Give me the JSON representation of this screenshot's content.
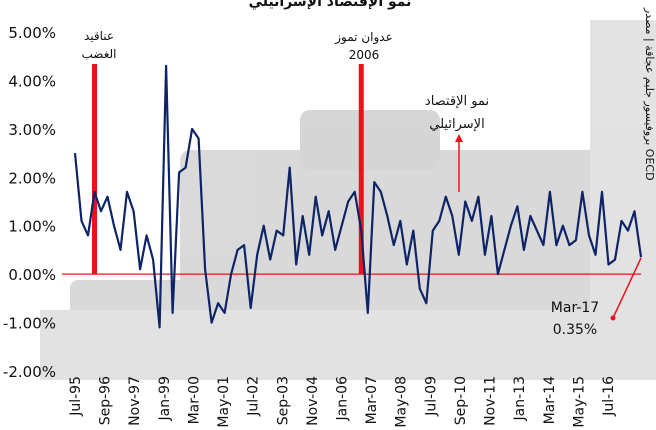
{
  "colors": {
    "line": "#0d2466",
    "event_bar": "#e8141b",
    "zero_line": "#e8141b",
    "annotation_arrow": "#e8141b",
    "text": "#111111",
    "background": "#ffffff",
    "photo_tint": "#8a8a8a"
  },
  "header": {
    "title_fragment": "نمو الإقتصاد الإسرائيلي"
  },
  "side_credit": "بروفيسور جليم عجاقة | مصدر OECD",
  "chart_data": {
    "type": "line",
    "title": "نمو الإقتصاد الإسرائيلي",
    "ylim": [
      -2,
      5
    ],
    "y_ticks": [
      -2,
      -1,
      0,
      1,
      2,
      3,
      4,
      5
    ],
    "y_tick_labels": [
      "-2.00%",
      "-1.00%",
      "0.00%",
      "1.00%",
      "2.00%",
      "3.00%",
      "4.00%",
      "5.00%"
    ],
    "x_tick_labels": [
      "Jul-95",
      "Sep-96",
      "Nov-97",
      "Jan-99",
      "Mar-00",
      "May-01",
      "Jul-02",
      "Sep-03",
      "Nov-04",
      "Jan-06",
      "Mar-07",
      "May-08",
      "Jul-09",
      "Sep-10",
      "Nov-11",
      "Jan-13",
      "Mar-14",
      "May-15",
      "Jul-16"
    ],
    "grid": false,
    "legend": "none",
    "series": [
      {
        "x": [
          "Jul-95",
          "Oct-95",
          "Jan-96",
          "Apr-96",
          "Jul-96",
          "Oct-96",
          "Jan-97",
          "Apr-97",
          "Jul-97",
          "Oct-97",
          "Jan-98",
          "Apr-98",
          "Jul-98",
          "Oct-98",
          "Jan-99",
          "Apr-99",
          "Jul-99",
          "Oct-99",
          "Jan-00",
          "Apr-00",
          "Jul-00",
          "Oct-00",
          "Jan-01",
          "Apr-01",
          "Jul-01",
          "Oct-01",
          "Jan-02",
          "Apr-02",
          "Jul-02",
          "Oct-02",
          "Jan-03",
          "Apr-03",
          "Jul-03",
          "Oct-03",
          "Jan-04",
          "Apr-04",
          "Jul-04",
          "Oct-04",
          "Jan-05",
          "Apr-05",
          "Jul-05",
          "Oct-05",
          "Jan-06",
          "Apr-06",
          "Jul-06",
          "Oct-06",
          "Jan-07",
          "Apr-07",
          "Jul-07",
          "Oct-07",
          "Jan-08",
          "Apr-08",
          "Jul-08",
          "Oct-08",
          "Jan-09",
          "Apr-09",
          "Jul-09",
          "Oct-09",
          "Jan-10",
          "Apr-10",
          "Jul-10",
          "Oct-10",
          "Jan-11",
          "Apr-11",
          "Jul-11",
          "Oct-11",
          "Jan-12",
          "Apr-12",
          "Jul-12",
          "Oct-12",
          "Jan-13",
          "Apr-13",
          "Jul-13",
          "Oct-13",
          "Jan-14",
          "Apr-14",
          "Jul-14",
          "Oct-14",
          "Jan-15",
          "Apr-15",
          "Jul-15",
          "Oct-15",
          "Jan-16",
          "Apr-16",
          "Jul-16",
          "Oct-16",
          "Jan-17",
          "Mar-17"
        ],
        "values": [
          2.5,
          1.1,
          0.8,
          1.7,
          1.3,
          1.6,
          1.0,
          0.5,
          1.7,
          1.3,
          0.1,
          0.8,
          0.3,
          -1.1,
          4.3,
          -0.8,
          2.1,
          2.2,
          3.0,
          2.8,
          0.1,
          -1.0,
          -0.6,
          -0.8,
          0.0,
          0.5,
          0.6,
          -0.7,
          0.4,
          1.0,
          0.3,
          0.9,
          0.8,
          2.2,
          0.2,
          1.2,
          0.4,
          1.6,
          0.8,
          1.3,
          0.5,
          1.0,
          1.5,
          1.7,
          0.9,
          -0.8,
          1.9,
          1.7,
          1.2,
          0.6,
          1.1,
          0.2,
          0.9,
          -0.3,
          -0.6,
          0.9,
          1.1,
          1.6,
          1.2,
          0.4,
          1.5,
          1.1,
          1.6,
          0.4,
          1.2,
          0.0,
          0.5,
          1.0,
          1.4,
          0.5,
          1.2,
          0.9,
          0.6,
          1.7,
          0.6,
          1.0,
          0.6,
          0.7,
          1.7,
          0.8,
          0.4,
          1.7,
          0.2,
          0.3,
          1.1,
          0.9,
          1.3,
          0.35
        ]
      }
    ],
    "annotations": [
      {
        "label": "عناقيد\nالغضب",
        "at": "Apr-96",
        "kind": "event_bar"
      },
      {
        "label": "عدوان تموز\n2006",
        "at": "Jul-06",
        "kind": "event_bar"
      },
      {
        "label": "نمو الإقتصاد\nالإسرائيلي",
        "kind": "callout"
      },
      {
        "label": "Mar-17\n0.35%",
        "at": "Mar-17",
        "kind": "callout"
      }
    ]
  }
}
